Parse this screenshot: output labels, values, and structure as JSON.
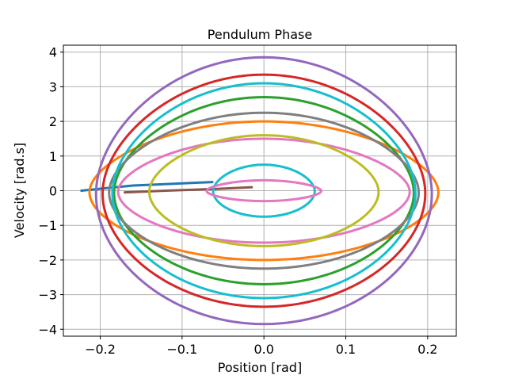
{
  "chart_data": {
    "type": "line",
    "title": "Pendulum Phase",
    "xlabel": "Position [rad]",
    "ylabel": "Velocity [rad.s]",
    "xlim": [
      -0.245,
      0.235
    ],
    "ylim": [
      -4.2,
      4.2
    ],
    "xticks": [
      -0.2,
      -0.1,
      0.0,
      0.1,
      0.2
    ],
    "xtick_labels": [
      "−0.2",
      "−0.1",
      "0.0",
      "0.1",
      "0.2"
    ],
    "yticks": [
      -4,
      -3,
      -2,
      -1,
      0,
      1,
      2,
      3,
      4
    ],
    "ytick_labels": [
      "−4",
      "−3",
      "−2",
      "−1",
      "0",
      "1",
      "2",
      "3",
      "4"
    ],
    "grid": true,
    "series": [
      {
        "color": "#1f77b4",
        "kind": "segment",
        "points": [
          [
            -0.223,
            0.0
          ],
          [
            -0.19,
            0.08
          ],
          [
            -0.16,
            0.15
          ],
          [
            -0.11,
            0.2
          ],
          [
            -0.063,
            0.25
          ]
        ]
      },
      {
        "color": "#ff7f0e",
        "kind": "orbit",
        "amplitude": 0.213,
        "vmax": 2.0,
        "bulge": 0.35
      },
      {
        "color": "#2ca02c",
        "kind": "orbit",
        "amplitude": 0.183,
        "vmax": 2.7,
        "bulge": 0.3
      },
      {
        "color": "#d62728",
        "kind": "orbit",
        "amplitude": 0.197,
        "vmax": 3.35,
        "bulge": 0.25
      },
      {
        "color": "#9467bd",
        "kind": "orbit",
        "amplitude": 0.205,
        "vmax": 3.85,
        "bulge": 0.2
      },
      {
        "color": "#8c564b",
        "kind": "segment",
        "points": [
          [
            -0.17,
            -0.05
          ],
          [
            -0.12,
            0.0
          ],
          [
            -0.06,
            0.05
          ],
          [
            -0.015,
            0.1
          ]
        ]
      },
      {
        "color": "#e377c2",
        "kind": "orbit",
        "amplitude": 0.178,
        "vmax": 1.5,
        "bulge": 0.35
      },
      {
        "color": "#7f7f7f",
        "kind": "orbit",
        "amplitude": 0.189,
        "vmax": 2.25,
        "bulge": 0.3
      },
      {
        "color": "#bcbd22",
        "kind": "orbit",
        "amplitude": 0.14,
        "vmax": 1.6,
        "bulge": 0.3
      },
      {
        "color": "#17becf",
        "kind": "orbit",
        "amplitude": 0.185,
        "vmax": 3.1,
        "bulge": 0.25
      },
      {
        "color": "#17becf",
        "kind": "orbit",
        "amplitude": 0.062,
        "vmax": 0.75,
        "bulge": 0.2
      },
      {
        "color": "#e377c2",
        "kind": "orbit",
        "amplitude": 0.07,
        "vmax": 0.3,
        "bulge": 0.4
      }
    ]
  }
}
